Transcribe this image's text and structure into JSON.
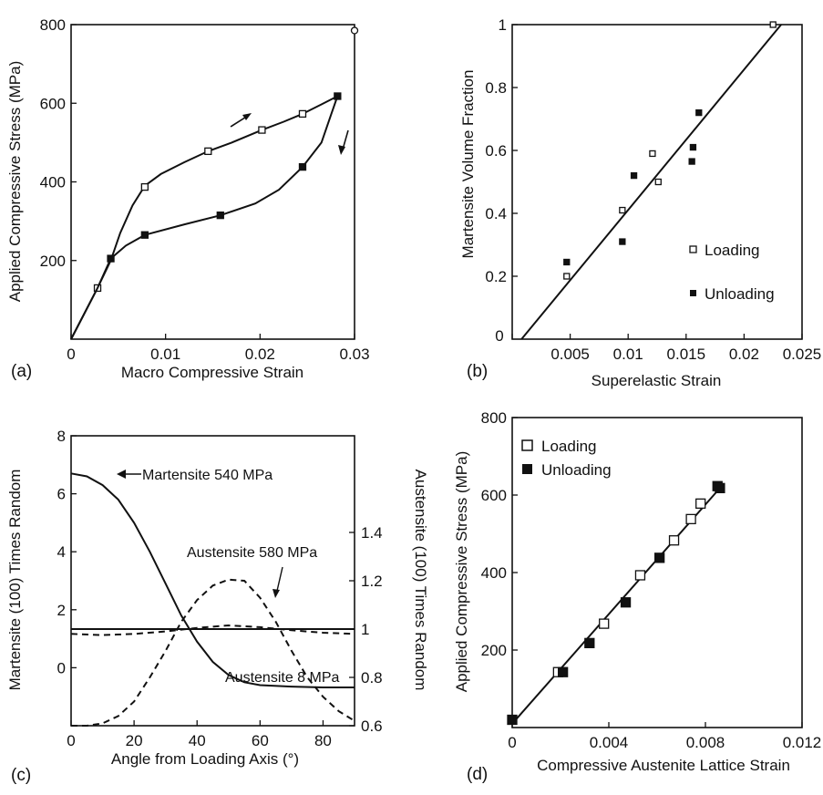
{
  "colors": {
    "ink": "#111111",
    "background": "#ffffff"
  },
  "panels": {
    "a": {
      "label": "(a)",
      "chart_data": {
        "type": "line",
        "xlabel": "Macro Compressive Strain",
        "ylabel": "Applied Compressive Stress (MPa)",
        "xlim": [
          0,
          0.03
        ],
        "ylim": [
          0,
          800
        ],
        "xticks": [
          0,
          0.01,
          0.02,
          0.03
        ],
        "xtick_labels": [
          "0",
          "0.01",
          "0.02",
          "0.03"
        ],
        "yticks": [
          200,
          400,
          600,
          800
        ],
        "ytick_labels": [
          "200",
          "400",
          "600",
          "800"
        ],
        "series": [
          {
            "marker": "open-square",
            "curve": [
              [
                0,
                0
              ],
              [
                0.0028,
                130
              ],
              [
                0.0042,
                200
              ],
              [
                0.0052,
                270
              ],
              [
                0.0065,
                340
              ],
              [
                0.0078,
                390
              ],
              [
                0.0095,
                420
              ],
              [
                0.012,
                450
              ],
              [
                0.0145,
                478
              ],
              [
                0.017,
                500
              ],
              [
                0.0202,
                532
              ],
              [
                0.0225,
                553
              ],
              [
                0.0245,
                573
              ],
              [
                0.0265,
                597
              ],
              [
                0.0282,
                618
              ]
            ],
            "points": [
              [
                0.0028,
                130
              ],
              [
                0.0078,
                387
              ],
              [
                0.0145,
                478
              ],
              [
                0.0202,
                532
              ],
              [
                0.0245,
                573
              ]
            ]
          },
          {
            "marker": "filled-square",
            "curve": [
              [
                0.0282,
                618
              ],
              [
                0.0275,
                570
              ],
              [
                0.0265,
                500
              ],
              [
                0.0245,
                438
              ],
              [
                0.022,
                380
              ],
              [
                0.0195,
                345
              ],
              [
                0.0158,
                315
              ],
              [
                0.012,
                292
              ],
              [
                0.0078,
                265
              ],
              [
                0.0058,
                238
              ],
              [
                0.0042,
                205
              ],
              [
                0.0028,
                130
              ],
              [
                0,
                0
              ]
            ],
            "points": [
              [
                0.0282,
                618
              ],
              [
                0.0245,
                438
              ],
              [
                0.0158,
                315
              ],
              [
                0.0078,
                265
              ],
              [
                0.0042,
                205
              ]
            ]
          },
          {
            "marker": "open-circle",
            "points": [
              [
                0.03,
                785
              ]
            ]
          }
        ]
      }
    },
    "b": {
      "label": "(b)",
      "chart_data": {
        "type": "scatter",
        "xlabel": "Superelastic Strain",
        "ylabel": "Martensite Volume Fraction",
        "xlim": [
          0,
          0.025
        ],
        "ylim": [
          0,
          1
        ],
        "xticks": [
          0,
          0.005,
          0.01,
          0.015,
          0.02,
          0.025
        ],
        "xtick_labels": [
          "0",
          "0.005",
          "0.01",
          "0.015",
          "0.02",
          "0.025"
        ],
        "yticks": [
          0.2,
          0.4,
          0.6,
          0.8,
          1
        ],
        "ytick_labels": [
          "0.2",
          "0.4",
          "0.6",
          "0.8",
          "1"
        ],
        "fit_line": [
          [
            0.0008,
            0
          ],
          [
            0.0232,
            1
          ]
        ],
        "legend": [
          "Loading",
          "Unloading"
        ],
        "series": [
          {
            "name": "Loading",
            "marker": "open-square",
            "points": [
              [
                0.0047,
                0.2
              ],
              [
                0.0095,
                0.41
              ],
              [
                0.0121,
                0.59
              ],
              [
                0.0126,
                0.5
              ],
              [
                0.0225,
                1.0
              ]
            ]
          },
          {
            "name": "Unloading",
            "marker": "filled-square",
            "points": [
              [
                0.0047,
                0.245
              ],
              [
                0.0095,
                0.31
              ],
              [
                0.0105,
                0.52
              ],
              [
                0.0155,
                0.565
              ],
              [
                0.0156,
                0.61
              ],
              [
                0.0161,
                0.72
              ]
            ]
          }
        ]
      }
    },
    "c": {
      "label": "(c)",
      "chart_data": {
        "type": "line",
        "xlabel": "Angle from Loading Axis (°)",
        "ylabel": "Martensite (100) Times Random",
        "y2label": "Austensite (100) Times Random",
        "xlim": [
          0,
          90
        ],
        "ylim": [
          -2,
          8
        ],
        "y2lim": [
          0.6,
          1.8
        ],
        "xticks": [
          0,
          20,
          40,
          60,
          80
        ],
        "xtick_labels": [
          "0",
          "20",
          "40",
          "60",
          "80"
        ],
        "yticks": [
          0,
          2,
          4,
          6,
          8
        ],
        "ytick_labels": [
          "0",
          "2",
          "4",
          "6",
          "8"
        ],
        "y2ticks": [
          0.6,
          0.8,
          1,
          1.2,
          1.4
        ],
        "y2tick_labels": [
          "0.6",
          "0.8",
          "1",
          "1.2",
          "1.4"
        ],
        "annotations": [
          "Martensite 540 MPa",
          "Austensite 580 MPa",
          "Austensite 8 MPa"
        ],
        "series": [
          {
            "style": "solid",
            "axis": "left",
            "points": [
              [
                0,
                6.7
              ],
              [
                5,
                6.6
              ],
              [
                10,
                6.3
              ],
              [
                15,
                5.8
              ],
              [
                20,
                5.0
              ],
              [
                25,
                4.0
              ],
              [
                30,
                2.9
              ],
              [
                35,
                1.8
              ],
              [
                40,
                0.9
              ],
              [
                45,
                0.2
              ],
              [
                50,
                -0.25
              ],
              [
                55,
                -0.5
              ],
              [
                60,
                -0.6
              ],
              [
                70,
                -0.65
              ],
              [
                80,
                -0.68
              ],
              [
                90,
                -0.68
              ]
            ]
          },
          {
            "style": "dashed",
            "axis": "right",
            "points": [
              [
                0,
                0.6
              ],
              [
                5,
                0.6
              ],
              [
                10,
                0.61
              ],
              [
                15,
                0.64
              ],
              [
                20,
                0.7
              ],
              [
                25,
                0.8
              ],
              [
                30,
                0.91
              ],
              [
                35,
                1.03
              ],
              [
                40,
                1.12
              ],
              [
                45,
                1.18
              ],
              [
                50,
                1.205
              ],
              [
                55,
                1.2
              ],
              [
                60,
                1.13
              ],
              [
                65,
                1.03
              ],
              [
                70,
                0.91
              ],
              [
                75,
                0.8
              ],
              [
                80,
                0.72
              ],
              [
                85,
                0.66
              ],
              [
                90,
                0.62
              ]
            ]
          },
          {
            "style": "dashed",
            "axis": "right",
            "points": [
              [
                0,
                0.98
              ],
              [
                10,
                0.975
              ],
              [
                20,
                0.98
              ],
              [
                30,
                0.99
              ],
              [
                40,
                1.005
              ],
              [
                50,
                1.015
              ],
              [
                60,
                1.008
              ],
              [
                70,
                0.995
              ],
              [
                80,
                0.985
              ],
              [
                90,
                0.98
              ]
            ]
          },
          {
            "style": "solid",
            "axis": "right",
            "points": [
              [
                0,
                1.0
              ],
              [
                90,
                1.0
              ]
            ]
          }
        ]
      }
    },
    "d": {
      "label": "(d)",
      "chart_data": {
        "type": "scatter",
        "xlabel": "Compressive Austenite Lattice Strain",
        "ylabel": "Applied Compressive Stress (MPa)",
        "xlim": [
          0,
          0.012
        ],
        "ylim": [
          0,
          800
        ],
        "xticks": [
          0,
          0.004,
          0.008,
          0.012
        ],
        "xtick_labels": [
          "0",
          "0.004",
          "0.008",
          "0.012"
        ],
        "yticks": [
          200,
          400,
          600,
          800
        ],
        "ytick_labels": [
          "200",
          "400",
          "600",
          "800"
        ],
        "fit_line": [
          [
            0,
            10
          ],
          [
            0.0087,
            625
          ]
        ],
        "legend": [
          "Loading",
          "Unloading"
        ],
        "series": [
          {
            "name": "Loading",
            "marker": "open-square",
            "points": [
              [
                0.0019,
                143
              ],
              [
                0.0038,
                268
              ],
              [
                0.0053,
                393
              ],
              [
                0.0067,
                483
              ],
              [
                0.0074,
                538
              ],
              [
                0.0078,
                578
              ]
            ]
          },
          {
            "name": "Unloading",
            "marker": "filled-square",
            "points": [
              [
                0,
                20
              ],
              [
                0.0021,
                143
              ],
              [
                0.0032,
                218
              ],
              [
                0.0047,
                323
              ],
              [
                0.0061,
                438
              ],
              [
                0.0085,
                623
              ],
              [
                0.0086,
                618
              ]
            ]
          }
        ]
      }
    }
  }
}
